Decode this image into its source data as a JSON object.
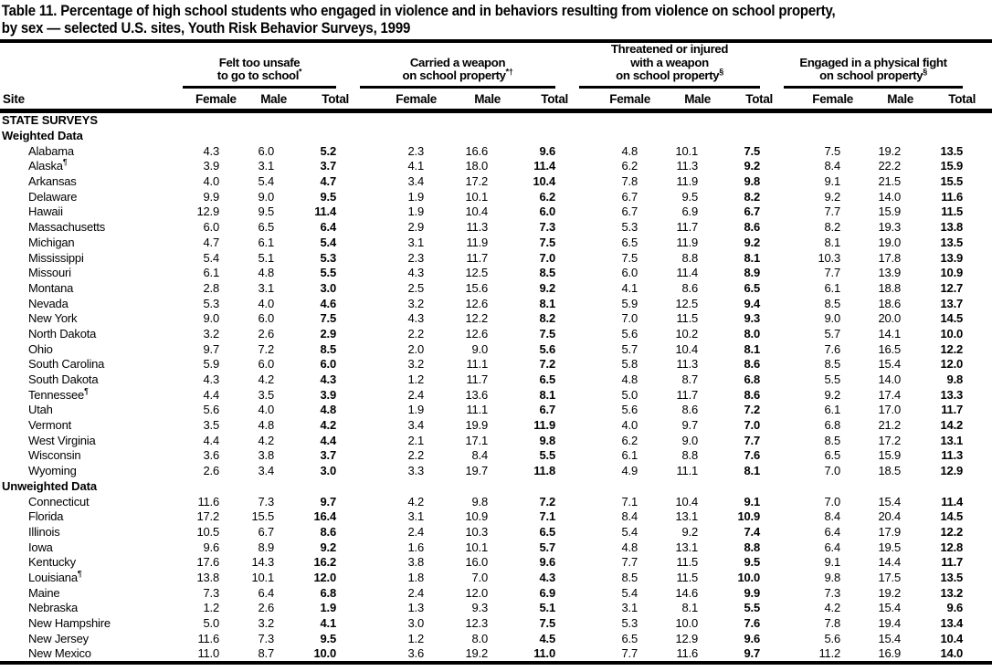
{
  "title": {
    "line1": "Table 11. Percentage of high school students who engaged in violence and in behaviors resulting from violence on school property,",
    "line2": "by sex — selected U.S. sites, Youth Risk Behavior Surveys, 1999"
  },
  "colors": {
    "text": "#000000",
    "background": "#ffffff",
    "rule": "#000000"
  },
  "table": {
    "site_header": "Site",
    "sub_columns": [
      "Female",
      "Male",
      "Total"
    ],
    "groups": [
      {
        "lines": [
          "Felt too unsafe",
          "to go to school"
        ],
        "sup": "*"
      },
      {
        "lines": [
          "Carried a weapon",
          "on school property"
        ],
        "sup": "*†"
      },
      {
        "lines": [
          "Threatened or injured",
          "with a weapon",
          "on school property"
        ],
        "sup": "§"
      },
      {
        "lines": [
          "Engaged in a physical fight",
          "on school property"
        ],
        "sup": "§"
      }
    ],
    "rows": [
      {
        "type": "section",
        "label": "STATE SURVEYS"
      },
      {
        "type": "subsection",
        "label": "Weighted Data"
      },
      {
        "type": "data",
        "site": "Alabama",
        "site_sup": "",
        "values": [
          "4.3",
          "6.0",
          "5.2",
          "2.3",
          "16.6",
          "9.6",
          "4.8",
          "10.1",
          "7.5",
          "7.5",
          "19.2",
          "13.5"
        ]
      },
      {
        "type": "data",
        "site": "Alaska",
        "site_sup": "¶",
        "values": [
          "3.9",
          "3.1",
          "3.7",
          "4.1",
          "18.0",
          "11.4",
          "6.2",
          "11.3",
          "9.2",
          "8.4",
          "22.2",
          "15.9"
        ]
      },
      {
        "type": "data",
        "site": "Arkansas",
        "site_sup": "",
        "values": [
          "4.0",
          "5.4",
          "4.7",
          "3.4",
          "17.2",
          "10.4",
          "7.8",
          "11.9",
          "9.8",
          "9.1",
          "21.5",
          "15.5"
        ]
      },
      {
        "type": "data",
        "site": "Delaware",
        "site_sup": "",
        "values": [
          "9.9",
          "9.0",
          "9.5",
          "1.9",
          "10.1",
          "6.2",
          "6.7",
          "9.5",
          "8.2",
          "9.2",
          "14.0",
          "11.6"
        ]
      },
      {
        "type": "data",
        "site": "Hawaii",
        "site_sup": "",
        "values": [
          "12.9",
          "9.5",
          "11.4",
          "1.9",
          "10.4",
          "6.0",
          "6.7",
          "6.9",
          "6.7",
          "7.7",
          "15.9",
          "11.5"
        ]
      },
      {
        "type": "data",
        "site": "Massachusetts",
        "site_sup": "",
        "values": [
          "6.0",
          "6.5",
          "6.4",
          "2.9",
          "11.3",
          "7.3",
          "5.3",
          "11.7",
          "8.6",
          "8.2",
          "19.3",
          "13.8"
        ]
      },
      {
        "type": "data",
        "site": "Michigan",
        "site_sup": "",
        "values": [
          "4.7",
          "6.1",
          "5.4",
          "3.1",
          "11.9",
          "7.5",
          "6.5",
          "11.9",
          "9.2",
          "8.1",
          "19.0",
          "13.5"
        ]
      },
      {
        "type": "data",
        "site": "Mississippi",
        "site_sup": "",
        "values": [
          "5.4",
          "5.1",
          "5.3",
          "2.3",
          "11.7",
          "7.0",
          "7.5",
          "8.8",
          "8.1",
          "10.3",
          "17.8",
          "13.9"
        ]
      },
      {
        "type": "data",
        "site": "Missouri",
        "site_sup": "",
        "values": [
          "6.1",
          "4.8",
          "5.5",
          "4.3",
          "12.5",
          "8.5",
          "6.0",
          "11.4",
          "8.9",
          "7.7",
          "13.9",
          "10.9"
        ]
      },
      {
        "type": "data",
        "site": "Montana",
        "site_sup": "",
        "values": [
          "2.8",
          "3.1",
          "3.0",
          "2.5",
          "15.6",
          "9.2",
          "4.1",
          "8.6",
          "6.5",
          "6.1",
          "18.8",
          "12.7"
        ]
      },
      {
        "type": "data",
        "site": "Nevada",
        "site_sup": "",
        "values": [
          "5.3",
          "4.0",
          "4.6",
          "3.2",
          "12.6",
          "8.1",
          "5.9",
          "12.5",
          "9.4",
          "8.5",
          "18.6",
          "13.7"
        ]
      },
      {
        "type": "data",
        "site": "New York",
        "site_sup": "",
        "values": [
          "9.0",
          "6.0",
          "7.5",
          "4.3",
          "12.2",
          "8.2",
          "7.0",
          "11.5",
          "9.3",
          "9.0",
          "20.0",
          "14.5"
        ]
      },
      {
        "type": "data",
        "site": "North Dakota",
        "site_sup": "",
        "values": [
          "3.2",
          "2.6",
          "2.9",
          "2.2",
          "12.6",
          "7.5",
          "5.6",
          "10.2",
          "8.0",
          "5.7",
          "14.1",
          "10.0"
        ]
      },
      {
        "type": "data",
        "site": "Ohio",
        "site_sup": "",
        "values": [
          "9.7",
          "7.2",
          "8.5",
          "2.0",
          "9.0",
          "5.6",
          "5.7",
          "10.4",
          "8.1",
          "7.6",
          "16.5",
          "12.2"
        ]
      },
      {
        "type": "data",
        "site": "South Carolina",
        "site_sup": "",
        "values": [
          "5.9",
          "6.0",
          "6.0",
          "3.2",
          "11.1",
          "7.2",
          "5.8",
          "11.3",
          "8.6",
          "8.5",
          "15.4",
          "12.0"
        ]
      },
      {
        "type": "data",
        "site": "South Dakota",
        "site_sup": "",
        "values": [
          "4.3",
          "4.2",
          "4.3",
          "1.2",
          "11.7",
          "6.5",
          "4.8",
          "8.7",
          "6.8",
          "5.5",
          "14.0",
          "9.8"
        ]
      },
      {
        "type": "data",
        "site": "Tennessee",
        "site_sup": "¶",
        "values": [
          "4.4",
          "3.5",
          "3.9",
          "2.4",
          "13.6",
          "8.1",
          "5.0",
          "11.7",
          "8.6",
          "9.2",
          "17.4",
          "13.3"
        ]
      },
      {
        "type": "data",
        "site": "Utah",
        "site_sup": "",
        "values": [
          "5.6",
          "4.0",
          "4.8",
          "1.9",
          "11.1",
          "6.7",
          "5.6",
          "8.6",
          "7.2",
          "6.1",
          "17.0",
          "11.7"
        ]
      },
      {
        "type": "data",
        "site": "Vermont",
        "site_sup": "",
        "values": [
          "3.5",
          "4.8",
          "4.2",
          "3.4",
          "19.9",
          "11.9",
          "4.0",
          "9.7",
          "7.0",
          "6.8",
          "21.2",
          "14.2"
        ]
      },
      {
        "type": "data",
        "site": "West Virginia",
        "site_sup": "",
        "values": [
          "4.4",
          "4.2",
          "4.4",
          "2.1",
          "17.1",
          "9.8",
          "6.2",
          "9.0",
          "7.7",
          "8.5",
          "17.2",
          "13.1"
        ]
      },
      {
        "type": "data",
        "site": "Wisconsin",
        "site_sup": "",
        "values": [
          "3.6",
          "3.8",
          "3.7",
          "2.2",
          "8.4",
          "5.5",
          "6.1",
          "8.8",
          "7.6",
          "6.5",
          "15.9",
          "11.3"
        ]
      },
      {
        "type": "data",
        "site": "Wyoming",
        "site_sup": "",
        "values": [
          "2.6",
          "3.4",
          "3.0",
          "3.3",
          "19.7",
          "11.8",
          "4.9",
          "11.1",
          "8.1",
          "7.0",
          "18.5",
          "12.9"
        ]
      },
      {
        "type": "subsection",
        "label": "Unweighted Data"
      },
      {
        "type": "data",
        "site": "Connecticut",
        "site_sup": "",
        "values": [
          "11.6",
          "7.3",
          "9.7",
          "4.2",
          "9.8",
          "7.2",
          "7.1",
          "10.4",
          "9.1",
          "7.0",
          "15.4",
          "11.4"
        ]
      },
      {
        "type": "data",
        "site": "Florida",
        "site_sup": "",
        "values": [
          "17.2",
          "15.5",
          "16.4",
          "3.1",
          "10.9",
          "7.1",
          "8.4",
          "13.1",
          "10.9",
          "8.4",
          "20.4",
          "14.5"
        ]
      },
      {
        "type": "data",
        "site": "Illinois",
        "site_sup": "",
        "values": [
          "10.5",
          "6.7",
          "8.6",
          "2.4",
          "10.3",
          "6.5",
          "5.4",
          "9.2",
          "7.4",
          "6.4",
          "17.9",
          "12.2"
        ]
      },
      {
        "type": "data",
        "site": "Iowa",
        "site_sup": "",
        "values": [
          "9.6",
          "8.9",
          "9.2",
          "1.6",
          "10.1",
          "5.7",
          "4.8",
          "13.1",
          "8.8",
          "6.4",
          "19.5",
          "12.8"
        ]
      },
      {
        "type": "data",
        "site": "Kentucky",
        "site_sup": "",
        "values": [
          "17.6",
          "14.3",
          "16.2",
          "3.8",
          "16.0",
          "9.6",
          "7.7",
          "11.5",
          "9.5",
          "9.1",
          "14.4",
          "11.7"
        ]
      },
      {
        "type": "data",
        "site": "Louisiana",
        "site_sup": "¶",
        "values": [
          "13.8",
          "10.1",
          "12.0",
          "1.8",
          "7.0",
          "4.3",
          "8.5",
          "11.5",
          "10.0",
          "9.8",
          "17.5",
          "13.5"
        ]
      },
      {
        "type": "data",
        "site": "Maine",
        "site_sup": "",
        "values": [
          "7.3",
          "6.4",
          "6.8",
          "2.4",
          "12.0",
          "6.9",
          "5.4",
          "14.6",
          "9.9",
          "7.3",
          "19.2",
          "13.2"
        ]
      },
      {
        "type": "data",
        "site": "Nebraska",
        "site_sup": "",
        "values": [
          "1.2",
          "2.6",
          "1.9",
          "1.3",
          "9.3",
          "5.1",
          "3.1",
          "8.1",
          "5.5",
          "4.2",
          "15.4",
          "9.6"
        ]
      },
      {
        "type": "data",
        "site": "New Hampshire",
        "site_sup": "",
        "values": [
          "5.0",
          "3.2",
          "4.1",
          "3.0",
          "12.3",
          "7.5",
          "5.3",
          "10.0",
          "7.6",
          "7.8",
          "19.4",
          "13.4"
        ]
      },
      {
        "type": "data",
        "site": "New Jersey",
        "site_sup": "",
        "values": [
          "11.6",
          "7.3",
          "9.5",
          "1.2",
          "8.0",
          "4.5",
          "6.5",
          "12.9",
          "9.6",
          "5.6",
          "15.4",
          "10.4"
        ]
      },
      {
        "type": "data",
        "site": "New Mexico",
        "site_sup": "",
        "values": [
          "11.0",
          "8.7",
          "10.0",
          "3.6",
          "19.2",
          "11.0",
          "7.7",
          "11.6",
          "9.7",
          "11.2",
          "16.9",
          "14.0"
        ]
      }
    ]
  }
}
